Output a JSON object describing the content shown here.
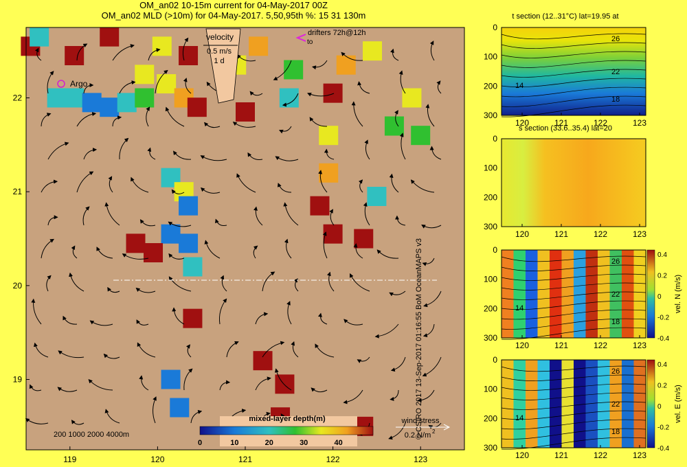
{
  "title_line1": "OM_an02 10-15m current for 04-May-2017 00Z",
  "title_line2": "OM_an02 MLD (>10m) for 04-May-2017. 5,50,95th %: 15   31   130m",
  "credit": "© CSIRO 2017   13-Sep-2017 01:16:55 BoM OceanMAPS v3",
  "colors": {
    "land": "#c8a27e",
    "background": "#ffff55",
    "arrow": "#000000"
  },
  "map": {
    "lon_ticks": [
      "119",
      "120",
      "121",
      "122",
      "123"
    ],
    "lat_ticks": [
      "22",
      "21",
      "20",
      "19"
    ],
    "velocity_key": {
      "title": "velocity",
      "speed": "0.5 m/s",
      "duration": "1 d"
    },
    "drifters_label": "drifters 72h@12h",
    "drifters_to": "to",
    "argo_label": "Argo",
    "depth_contours_label": "200  1000  2000  4000m",
    "wind_key": {
      "title": "wind stress",
      "value": "0.2 N/m"
    },
    "wind_unit_exp": "2",
    "colorbar": {
      "title": "mixed-layer depth(m)",
      "ticks": [
        "0",
        "10",
        "20",
        "30",
        "40"
      ],
      "range": [
        0,
        50
      ]
    }
  },
  "chart_data": [
    {
      "type": "heatmap",
      "title": "",
      "description_source": "mixed-layer depth over the map area",
      "xlabel": "",
      "ylabel": "",
      "xlim": [
        118.5,
        123.5
      ],
      "ylim": [
        18.25,
        22.75
      ],
      "units": "m",
      "cells": [
        {
          "lon": 118.55,
          "lat": 22.55,
          "v": 45
        },
        {
          "lon": 118.65,
          "lat": 22.65,
          "v": 22
        },
        {
          "lon": 119.05,
          "lat": 22.45,
          "v": 45
        },
        {
          "lon": 119.45,
          "lat": 22.65,
          "v": 45
        },
        {
          "lon": 118.85,
          "lat": 22.0,
          "v": 20
        },
        {
          "lon": 119.05,
          "lat": 22.0,
          "v": 20
        },
        {
          "lon": 119.25,
          "lat": 21.95,
          "v": 19
        },
        {
          "lon": 119.45,
          "lat": 21.9,
          "v": 19
        },
        {
          "lon": 119.65,
          "lat": 21.95,
          "v": 20
        },
        {
          "lon": 119.85,
          "lat": 22.0,
          "v": 30
        },
        {
          "lon": 119.85,
          "lat": 22.25,
          "v": 35
        },
        {
          "lon": 120.1,
          "lat": 22.15,
          "v": 38
        },
        {
          "lon": 120.3,
          "lat": 22.0,
          "v": 40
        },
        {
          "lon": 120.45,
          "lat": 21.9,
          "v": 46
        },
        {
          "lon": 120.05,
          "lat": 22.55,
          "v": 35
        },
        {
          "lon": 120.35,
          "lat": 22.45,
          "v": 45
        },
        {
          "lon": 120.15,
          "lat": 21.15,
          "v": 22
        },
        {
          "lon": 120.3,
          "lat": 21.0,
          "v": 33
        },
        {
          "lon": 120.35,
          "lat": 20.85,
          "v": 18
        },
        {
          "lon": 120.15,
          "lat": 20.55,
          "v": 14
        },
        {
          "lon": 120.35,
          "lat": 20.45,
          "v": 18
        },
        {
          "lon": 120.4,
          "lat": 20.2,
          "v": 20
        },
        {
          "lon": 119.75,
          "lat": 20.45,
          "v": 45
        },
        {
          "lon": 119.95,
          "lat": 20.35,
          "v": 45
        },
        {
          "lon": 120.4,
          "lat": 19.65,
          "v": 46
        },
        {
          "lon": 120.15,
          "lat": 19.0,
          "v": 14
        },
        {
          "lon": 120.25,
          "lat": 18.7,
          "v": 14
        },
        {
          "lon": 121.0,
          "lat": 21.85,
          "v": 48
        },
        {
          "lon": 120.9,
          "lat": 22.35,
          "v": 35
        },
        {
          "lon": 121.15,
          "lat": 22.55,
          "v": 40
        },
        {
          "lon": 121.55,
          "lat": 22.3,
          "v": 30
        },
        {
          "lon": 121.5,
          "lat": 22.0,
          "v": 25
        },
        {
          "lon": 122.0,
          "lat": 22.05,
          "v": 45
        },
        {
          "lon": 122.15,
          "lat": 22.35,
          "v": 40
        },
        {
          "lon": 121.95,
          "lat": 21.6,
          "v": 38
        },
        {
          "lon": 121.95,
          "lat": 21.2,
          "v": 42
        },
        {
          "lon": 121.85,
          "lat": 20.85,
          "v": 45
        },
        {
          "lon": 122.0,
          "lat": 20.55,
          "v": 46
        },
        {
          "lon": 122.35,
          "lat": 20.5,
          "v": 46
        },
        {
          "lon": 122.45,
          "lat": 22.5,
          "v": 36
        },
        {
          "lon": 122.7,
          "lat": 21.7,
          "v": 30
        },
        {
          "lon": 122.9,
          "lat": 22.0,
          "v": 33
        },
        {
          "lon": 123.0,
          "lat": 21.6,
          "v": 31
        },
        {
          "lon": 121.2,
          "lat": 19.2,
          "v": 46
        },
        {
          "lon": 121.45,
          "lat": 18.95,
          "v": 46
        },
        {
          "lon": 121.4,
          "lat": 18.6,
          "v": 46
        },
        {
          "lon": 122.0,
          "lat": 18.45,
          "v": 46
        },
        {
          "lon": 122.35,
          "lat": 18.5,
          "v": 46
        },
        {
          "lon": 122.5,
          "lat": 20.95,
          "v": 20
        }
      ]
    },
    {
      "type": "heatmap",
      "title": "t section (12..31°C) lat=19.95 at",
      "xlabel": "",
      "ylabel": "",
      "x_ticks": [
        "120",
        "121",
        "122",
        "123"
      ],
      "y_ticks": [
        "0",
        "100",
        "200",
        "300"
      ],
      "contour_labels": [
        "26",
        "22",
        "18",
        "14"
      ]
    },
    {
      "type": "heatmap",
      "title": "s section (33.6..35.4) lat=20",
      "xlabel": "",
      "ylabel": "",
      "x_ticks": [
        "120",
        "121",
        "122",
        "123"
      ],
      "y_ticks": [
        "0",
        "100",
        "200",
        "300"
      ]
    },
    {
      "type": "heatmap",
      "title": "",
      "xlabel": "",
      "ylabel": "vel. N (m/s)",
      "x_ticks": [
        "120",
        "121",
        "122",
        "123"
      ],
      "y_ticks": [
        "0",
        "100",
        "200",
        "300"
      ],
      "contour_labels": [
        "26",
        "22",
        "18",
        "14"
      ],
      "colorbar_ticks": [
        "0.4",
        "0.2",
        "0",
        "-0.2",
        "-0.4"
      ]
    },
    {
      "type": "heatmap",
      "title": "",
      "xlabel": "",
      "ylabel": "vel. E (m/s)",
      "x_ticks": [
        "120",
        "121",
        "122",
        "123"
      ],
      "y_ticks": [
        "0",
        "100",
        "200",
        "300"
      ],
      "contour_labels": [
        "26",
        "22",
        "18",
        "14"
      ],
      "colorbar_ticks": [
        "0.4",
        "0.2",
        "0",
        "-0.2",
        "-0.4"
      ]
    }
  ]
}
